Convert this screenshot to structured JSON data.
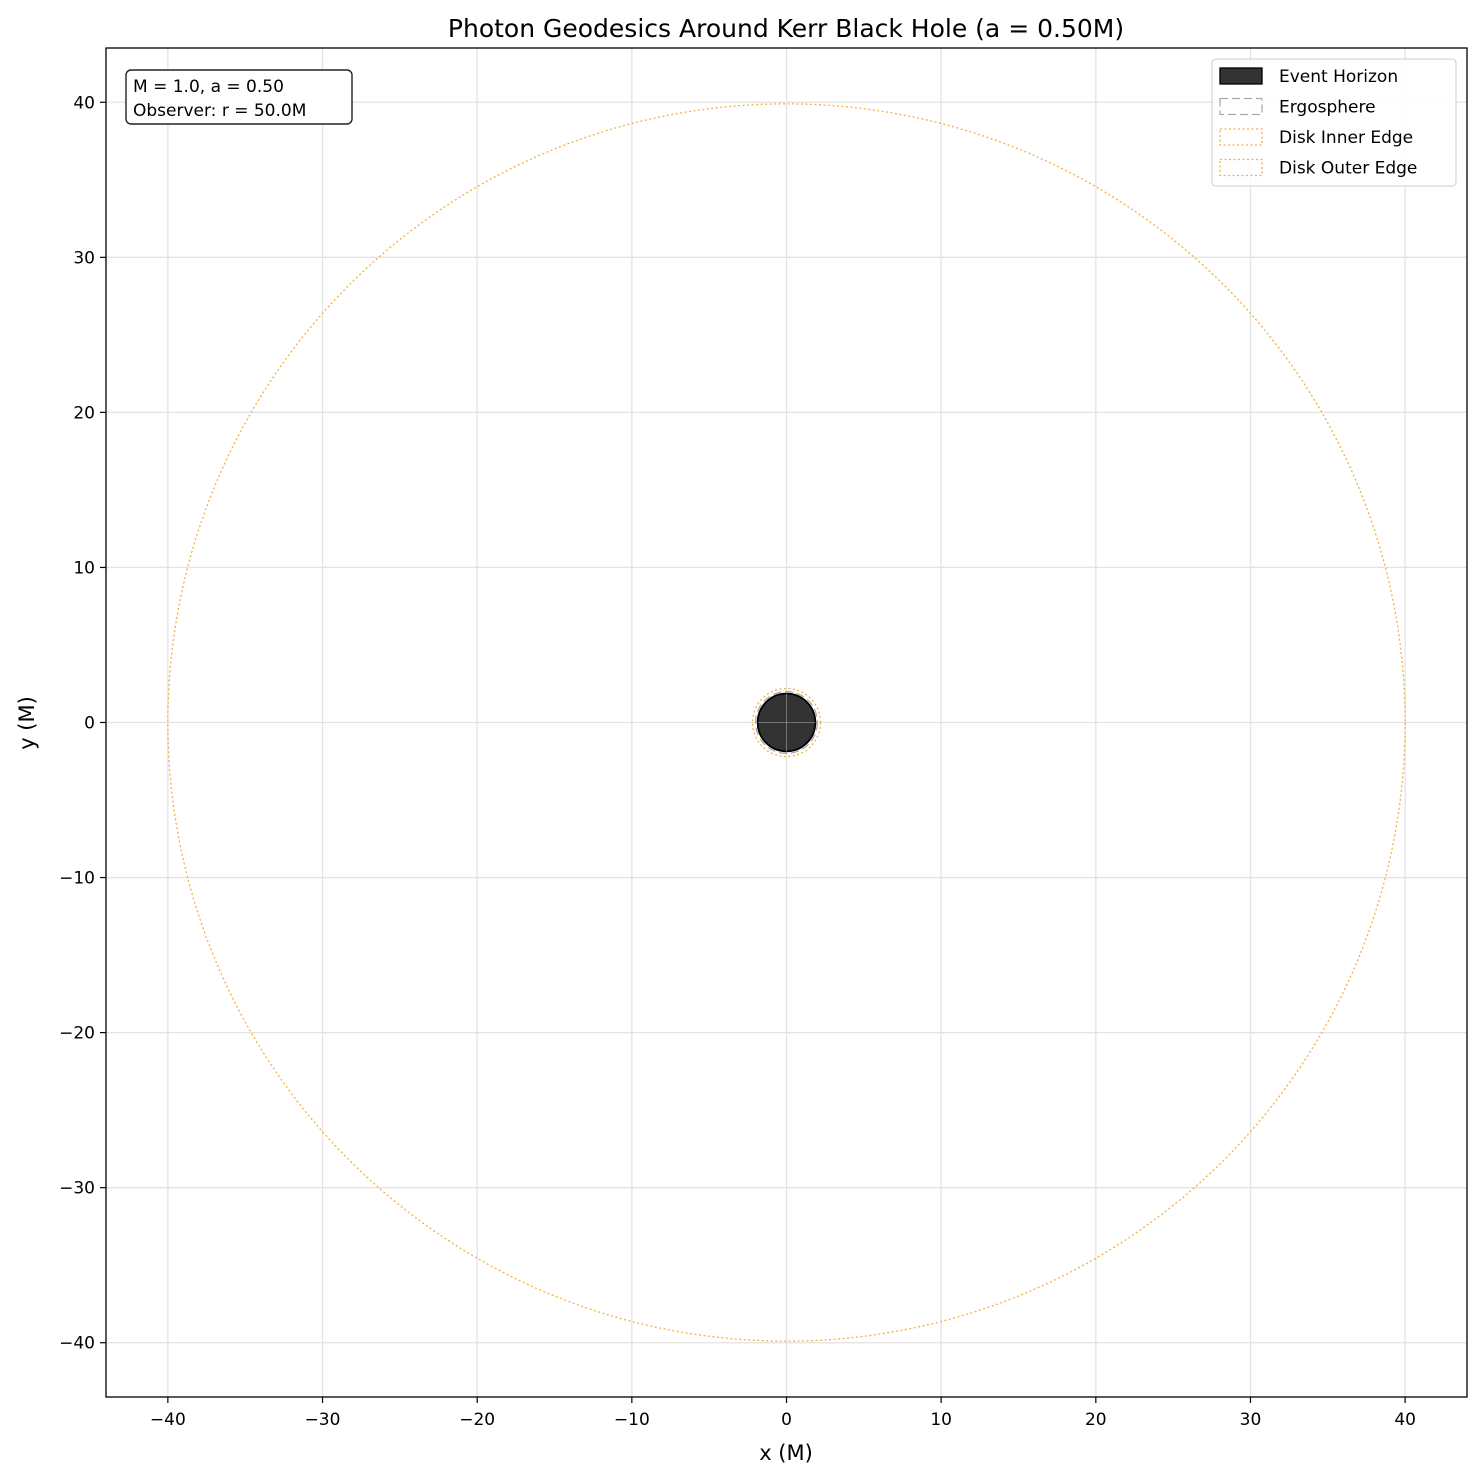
{
  "chart_data": {
    "type": "scatter",
    "title": "Photon Geodesics Around Kerr Black Hole (a = 0.50M)",
    "xlabel": "x (M)",
    "ylabel": "y (M)",
    "xlim": [
      -44,
      44
    ],
    "ylim": [
      -43.5,
      43.5
    ],
    "xticks": [
      -40,
      -30,
      -20,
      -10,
      0,
      10,
      20,
      30,
      40
    ],
    "yticks": [
      -40,
      -30,
      -20,
      -10,
      0,
      10,
      20,
      30,
      40
    ],
    "grid": true,
    "legend_position": "top-right",
    "annotation": {
      "lines": [
        "M = 1.0, a = 0.50",
        "Observer: r = 50.0M"
      ],
      "position": "top-left"
    },
    "series": [
      {
        "name": "Event Horizon",
        "shape": "circle",
        "radius": 1.866,
        "fill": "#333333",
        "stroke": "#000000",
        "linestyle": "solid"
      },
      {
        "name": "Ergosphere",
        "shape": "circle",
        "radius": 2.0,
        "fill": "none",
        "stroke": "#aaaaaa",
        "linestyle": "dashed"
      },
      {
        "name": "Disk Inner Edge",
        "shape": "circle",
        "radius": 2.2,
        "fill": "none",
        "stroke": "#f5b041",
        "linestyle": "dotted"
      },
      {
        "name": "Disk Outer Edge",
        "shape": "circle",
        "radius": 40.0,
        "fill": "none",
        "stroke": "#f5b041",
        "linestyle": "dotted"
      }
    ]
  }
}
